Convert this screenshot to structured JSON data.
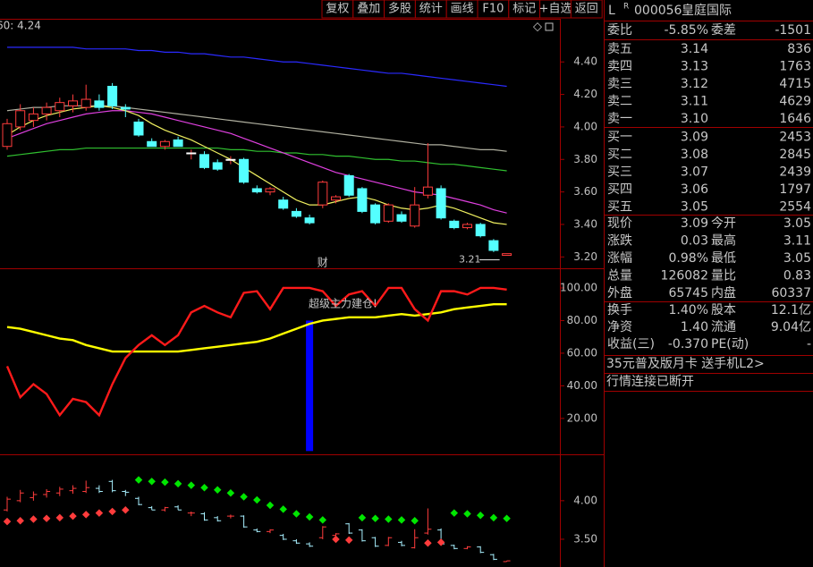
{
  "toolbar": [
    "复权",
    "叠加",
    "多股",
    "统计",
    "画线",
    "F10",
    "标记",
    "+自选",
    "返回"
  ],
  "chart_data": [
    {
      "type": "candlestick",
      "header": "60: 4.24",
      "annotation": "财",
      "up_color": "#ff3c3c",
      "down_color": "#54ffff",
      "open": [
        3.88,
        4.0,
        4.04,
        4.08,
        4.1,
        4.13,
        4.12,
        4.16,
        4.25,
        4.12,
        4.03,
        3.91,
        3.88,
        3.92,
        3.84,
        3.83,
        3.78,
        3.8,
        3.8,
        3.62,
        3.6,
        3.55,
        3.48,
        3.44,
        3.52,
        3.55,
        3.7,
        3.62,
        3.52,
        3.42,
        3.46,
        3.39,
        3.58,
        3.62,
        3.42,
        3.38,
        3.4,
        3.3,
        3.21
      ],
      "high": [
        4.05,
        4.14,
        4.12,
        4.15,
        4.18,
        4.2,
        4.26,
        4.2,
        4.27,
        4.14,
        4.05,
        3.93,
        3.92,
        3.94,
        3.86,
        3.85,
        3.8,
        3.82,
        3.81,
        3.64,
        3.63,
        3.57,
        3.5,
        3.46,
        3.67,
        3.58,
        3.71,
        3.63,
        3.53,
        3.53,
        3.48,
        3.63,
        3.9,
        3.64,
        3.43,
        3.41,
        3.41,
        3.31,
        3.22
      ],
      "low": [
        3.86,
        3.98,
        4.0,
        4.04,
        4.06,
        4.09,
        4.1,
        4.1,
        4.11,
        4.06,
        3.94,
        3.88,
        3.86,
        3.88,
        3.8,
        3.74,
        3.73,
        3.77,
        3.65,
        3.59,
        3.58,
        3.49,
        3.44,
        3.4,
        3.5,
        3.53,
        3.57,
        3.47,
        3.4,
        3.41,
        3.41,
        3.38,
        3.56,
        3.43,
        3.37,
        3.37,
        3.32,
        3.23,
        3.21
      ],
      "close": [
        4.02,
        4.1,
        4.08,
        4.12,
        4.15,
        4.16,
        4.17,
        4.12,
        4.13,
        4.11,
        3.95,
        3.88,
        3.91,
        3.88,
        3.84,
        3.75,
        3.74,
        3.8,
        3.66,
        3.6,
        3.62,
        3.5,
        3.45,
        3.41,
        3.66,
        3.57,
        3.58,
        3.48,
        3.41,
        3.52,
        3.42,
        3.52,
        3.63,
        3.44,
        3.38,
        3.4,
        3.33,
        3.24,
        3.22
      ],
      "series": [
        {
          "color": "#2a2aff",
          "values": [
            4.49,
            4.49,
            4.49,
            4.49,
            4.49,
            4.49,
            4.48,
            4.48,
            4.48,
            4.48,
            4.47,
            4.47,
            4.46,
            4.46,
            4.45,
            4.45,
            4.44,
            4.43,
            4.43,
            4.42,
            4.41,
            4.4,
            4.4,
            4.39,
            4.38,
            4.37,
            4.36,
            4.35,
            4.34,
            4.33,
            4.33,
            4.32,
            4.31,
            4.3,
            4.29,
            4.28,
            4.27,
            4.26,
            4.25
          ]
        },
        {
          "color": "#b0b0a0",
          "values": [
            4.1,
            4.11,
            4.12,
            4.12,
            4.13,
            4.13,
            4.13,
            4.13,
            4.13,
            4.12,
            4.11,
            4.1,
            4.09,
            4.08,
            4.07,
            4.06,
            4.05,
            4.04,
            4.03,
            4.02,
            4.01,
            4.0,
            3.99,
            3.98,
            3.97,
            3.96,
            3.95,
            3.94,
            3.93,
            3.92,
            3.91,
            3.9,
            3.89,
            3.89,
            3.88,
            3.87,
            3.86,
            3.86,
            3.85
          ]
        },
        {
          "color": "#30c030",
          "values": [
            3.82,
            3.83,
            3.84,
            3.85,
            3.86,
            3.86,
            3.87,
            3.87,
            3.87,
            3.87,
            3.87,
            3.87,
            3.87,
            3.87,
            3.87,
            3.87,
            3.87,
            3.86,
            3.86,
            3.85,
            3.85,
            3.84,
            3.84,
            3.83,
            3.83,
            3.82,
            3.82,
            3.81,
            3.8,
            3.8,
            3.79,
            3.79,
            3.78,
            3.77,
            3.77,
            3.76,
            3.75,
            3.74,
            3.73
          ]
        },
        {
          "color": "#e040e0",
          "values": [
            3.93,
            3.96,
            3.99,
            4.02,
            4.04,
            4.06,
            4.08,
            4.09,
            4.1,
            4.1,
            4.09,
            4.08,
            4.06,
            4.04,
            4.02,
            4.0,
            3.98,
            3.96,
            3.93,
            3.9,
            3.87,
            3.84,
            3.81,
            3.78,
            3.75,
            3.72,
            3.7,
            3.68,
            3.66,
            3.64,
            3.62,
            3.6,
            3.59,
            3.58,
            3.56,
            3.54,
            3.52,
            3.49,
            3.47
          ]
        },
        {
          "color": "#f0f060",
          "values": [
            3.95,
            4.0,
            4.04,
            4.07,
            4.09,
            4.11,
            4.12,
            4.13,
            4.12,
            4.1,
            4.07,
            4.02,
            3.98,
            3.95,
            3.92,
            3.88,
            3.84,
            3.8,
            3.75,
            3.7,
            3.65,
            3.6,
            3.55,
            3.52,
            3.52,
            3.54,
            3.56,
            3.57,
            3.55,
            3.52,
            3.5,
            3.49,
            3.5,
            3.52,
            3.5,
            3.47,
            3.44,
            3.41,
            3.4
          ]
        }
      ],
      "ylim": [
        3.13,
        4.66
      ],
      "yticks": [
        {
          "value": 4.4,
          "label": "4.40"
        },
        {
          "value": 4.2,
          "label": "4.20"
        },
        {
          "value": 4.0,
          "label": "4.00"
        },
        {
          "value": 3.8,
          "label": "3.80"
        },
        {
          "value": 3.6,
          "label": "3.60"
        },
        {
          "value": 3.4,
          "label": "3.40"
        },
        {
          "value": 3.2,
          "label": "3.20"
        }
      ]
    },
    {
      "type": "line",
      "annotation": "超级主力建仓!",
      "series": [
        {
          "color": "#ff1a1a",
          "values": [
            52,
            33,
            41,
            35,
            22,
            32,
            30,
            22,
            41,
            57,
            65,
            71,
            65,
            71,
            85,
            89,
            85,
            82,
            97,
            98,
            87,
            100,
            100,
            100,
            98,
            89,
            96,
            98,
            89,
            100,
            100,
            87,
            80,
            98,
            98,
            96,
            100,
            100,
            99
          ]
        },
        {
          "color": "#ffff00",
          "values": [
            76,
            75,
            73,
            71,
            69,
            68,
            65,
            63,
            61,
            61,
            61,
            61,
            61,
            61,
            62,
            63,
            64,
            65,
            66,
            67,
            69,
            72,
            75,
            78,
            80,
            81,
            82,
            82,
            82,
            83,
            84,
            83,
            84,
            85,
            87,
            88,
            89,
            90,
            90
          ]
        }
      ],
      "bars": {
        "color": "#0000ff",
        "values": [
          null,
          null,
          null,
          null,
          null,
          null,
          null,
          null,
          null,
          null,
          null,
          null,
          null,
          null,
          null,
          null,
          null,
          null,
          null,
          null,
          null,
          null,
          null,
          80,
          null,
          null,
          null,
          null,
          null,
          null,
          null,
          null,
          null,
          null,
          null,
          null,
          null,
          null,
          null
        ]
      },
      "ylim": [
        -2,
        111.5
      ],
      "yticks": [
        {
          "value": 100,
          "label": "100.00"
        },
        {
          "value": 80,
          "label": "80.00"
        },
        {
          "value": 60,
          "label": "60.00"
        },
        {
          "value": 40,
          "label": "40.00"
        },
        {
          "value": 20,
          "label": "20.00"
        }
      ]
    },
    {
      "type": "sar",
      "dots": [
        {
          "color": "#ff3c3c",
          "values": [
            3.73,
            3.74,
            3.76,
            3.77,
            3.78,
            3.8,
            3.82,
            3.84,
            3.86,
            3.88,
            null,
            null,
            null,
            null,
            null,
            null,
            null,
            null,
            null,
            null,
            null,
            null,
            null,
            null,
            null,
            3.5,
            3.49,
            null,
            null,
            null,
            null,
            null,
            3.45,
            3.46,
            null,
            null,
            null,
            null,
            null
          ]
        },
        {
          "color": "#00e600",
          "values": [
            null,
            null,
            null,
            null,
            null,
            null,
            null,
            null,
            null,
            null,
            4.27,
            4.25,
            4.24,
            4.22,
            4.2,
            4.17,
            4.14,
            4.1,
            4.05,
            4.01,
            3.94,
            3.89,
            3.83,
            3.79,
            3.75,
            null,
            null,
            3.78,
            3.77,
            3.76,
            3.75,
            3.74,
            null,
            null,
            3.84,
            3.83,
            3.81,
            3.78,
            3.77
          ]
        }
      ],
      "ylim": [
        3.14,
        4.59
      ],
      "yticks": [
        {
          "value": 4.0,
          "label": "4.00"
        },
        {
          "value": 3.5,
          "label": "3.50"
        }
      ]
    }
  ],
  "quote": {
    "prefix": "L",
    "mark": "R",
    "code": "000056",
    "name": "皇庭国际",
    "ratio": [
      "委比",
      "-5.85%",
      "委差",
      "-1501"
    ],
    "book": [
      [
        "卖五",
        "3.14",
        "836"
      ],
      [
        "卖四",
        "3.13",
        "1763"
      ],
      [
        "卖三",
        "3.12",
        "4715"
      ],
      [
        "卖二",
        "3.11",
        "4629"
      ],
      [
        "卖一",
        "3.10",
        "1646"
      ],
      [
        "买一",
        "3.09",
        "2453"
      ],
      [
        "买二",
        "3.08",
        "2845"
      ],
      [
        "买三",
        "3.07",
        "2439"
      ],
      [
        "买四",
        "3.06",
        "1797"
      ],
      [
        "买五",
        "3.05",
        "2554"
      ]
    ],
    "stats": [
      [
        "现价",
        "3.09",
        "今开",
        "3.05"
      ],
      [
        "涨跌",
        "0.03",
        "最高",
        "3.11"
      ],
      [
        "涨幅",
        "0.98%",
        "最低",
        "3.05"
      ],
      [
        "总量",
        "126082",
        "量比",
        "0.83"
      ],
      [
        "外盘",
        "65745",
        "内盘",
        "60337"
      ]
    ],
    "finance": [
      [
        "换手",
        "1.40%",
        "股本",
        "12.1亿"
      ],
      [
        "净资",
        "1.40",
        "流通",
        "9.04亿"
      ],
      [
        "收益(三)",
        "-0.370",
        "PE(动)",
        "-"
      ]
    ],
    "promo": "35元普及版月卡 送手机L2>",
    "status": "行情连接已断开"
  }
}
